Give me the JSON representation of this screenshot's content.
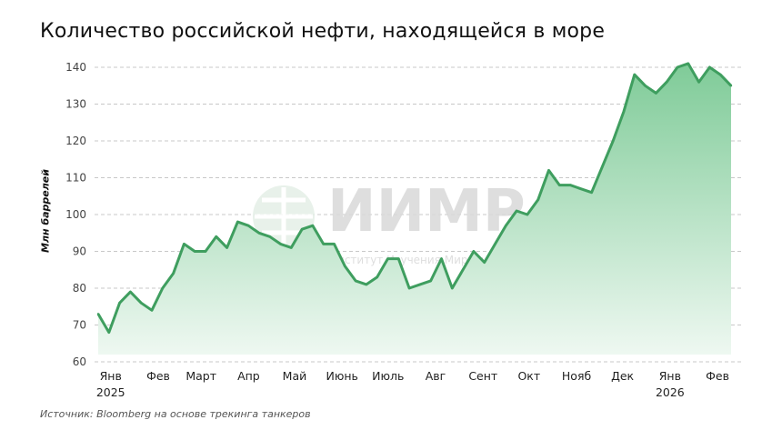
{
  "chart_data": {
    "type": "area",
    "title": "Количество российской нефти, находящейся в море",
    "ylabel": "Млн баррелей",
    "xlabel": "",
    "ylim": [
      60,
      140
    ],
    "yticks": [
      60,
      70,
      80,
      90,
      100,
      110,
      120,
      130,
      140
    ],
    "grid": "horizontal dashed",
    "xticks": [
      {
        "label": "Янв",
        "year": "2025",
        "date": "2025-01-01"
      },
      {
        "label": "Фев",
        "date": "2025-02-01"
      },
      {
        "label": "Март",
        "date": "2025-03-01"
      },
      {
        "label": "Апр",
        "date": "2025-04-01"
      },
      {
        "label": "Май",
        "date": "2025-05-01"
      },
      {
        "label": "Июнь",
        "date": "2025-06-01"
      },
      {
        "label": "Июль",
        "date": "2025-07-01"
      },
      {
        "label": "Авг",
        "date": "2025-08-01"
      },
      {
        "label": "Сент",
        "date": "2025-09-01"
      },
      {
        "label": "Окт",
        "date": "2025-10-01"
      },
      {
        "label": "Нояб",
        "date": "2025-11-01"
      },
      {
        "label": "Дек",
        "date": "2025-12-01"
      },
      {
        "label": "Янв",
        "year": "2026",
        "date": "2026-01-01"
      },
      {
        "label": "Фев",
        "date": "2026-02-01"
      }
    ],
    "x_start": "2024-12-28",
    "x_step_days": 7,
    "values": [
      73,
      68,
      76,
      79,
      76,
      74,
      80,
      84,
      92,
      90,
      90,
      94,
      91,
      98,
      97,
      95,
      94,
      92,
      91,
      96,
      97,
      92,
      92,
      86,
      82,
      81,
      83,
      88,
      88,
      80,
      81,
      82,
      88,
      80,
      85,
      90,
      87,
      92,
      97,
      101,
      100,
      104,
      112,
      108,
      108,
      107,
      106,
      113,
      120,
      128,
      138,
      135,
      133,
      136,
      140,
      141,
      136,
      140,
      138,
      135
    ],
    "colors": {
      "line": "#3f9e5f",
      "fill_top": "#7fcb98",
      "fill_bottom": "#eef8f1",
      "grid": "#c8c8c8"
    }
  },
  "source": "Источник: Bloomberg на основе трекинга танкеров",
  "watermark": {
    "logo": "ИИМР",
    "subtitle": "Институт Изучения Мировых Рынков"
  }
}
